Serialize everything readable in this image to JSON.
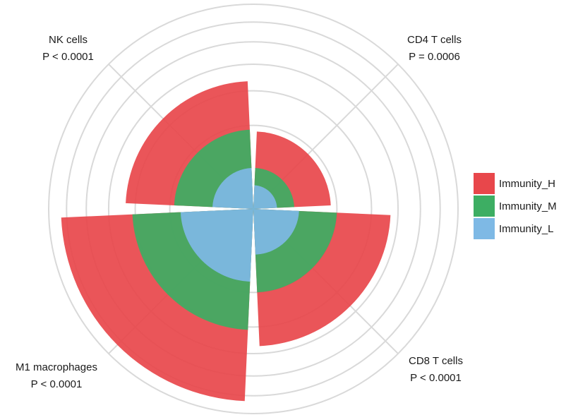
{
  "chart_data": {
    "type": "polar-bar",
    "title": "",
    "categories": [
      {
        "name": "CD4 T cells",
        "p_label": "P = 0.0006"
      },
      {
        "name": "CD8 T cells",
        "p_label": "P < 0.0001"
      },
      {
        "name": "M1 macrophages",
        "p_label": "P < 0.0001"
      },
      {
        "name": "NK cells",
        "p_label": "P < 0.0001"
      }
    ],
    "series": [
      {
        "name": "Immunity_H",
        "color": "#E8474B",
        "values": [
          0.043,
          0.135,
          0.265,
          0.117
        ]
      },
      {
        "name": "Immunity_M",
        "color": "#3DAE63",
        "values": [
          0.012,
          0.05,
          0.105,
          0.045
        ]
      },
      {
        "name": "Immunity_L",
        "color": "#7EB9E5",
        "values": [
          0.004,
          0.015,
          0.038,
          0.012
        ]
      }
    ],
    "r_range": [
      0,
      0.3
    ],
    "grid_rings": [
      0.05,
      0.1,
      0.15,
      0.2,
      0.25,
      0.3
    ],
    "grid": true,
    "legend_position": "right"
  }
}
